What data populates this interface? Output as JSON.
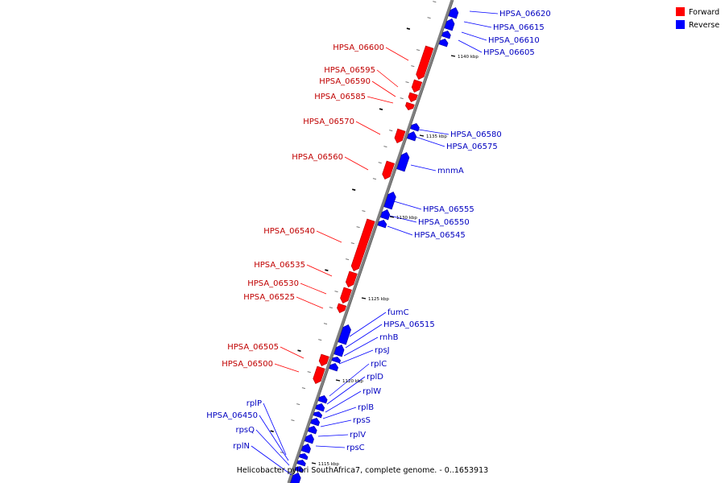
{
  "legend": [
    {
      "label": "Forward",
      "color": "#ff0000"
    },
    {
      "label": "Reverse",
      "color": "#0000ff"
    }
  ],
  "caption": "Helicobacter pylori SouthAfrica7, complete genome. - 0..1653913",
  "colors": {
    "forward": "#ff0000",
    "reverse": "#0000ff",
    "backbone": "#808080",
    "leader": "#000000"
  },
  "ticks": [
    "1140 kbp",
    "1135 kbp",
    "1130 kbp",
    "1125 kbp",
    "1120 kbp",
    "1115 kbp"
  ],
  "genes": [
    {
      "name": "HPSA_06620",
      "strand": "reverse"
    },
    {
      "name": "HPSA_06615",
      "strand": "reverse"
    },
    {
      "name": "HPSA_06610",
      "strand": "reverse"
    },
    {
      "name": "HPSA_06605",
      "strand": "reverse"
    },
    {
      "name": "HPSA_06600",
      "strand": "forward"
    },
    {
      "name": "HPSA_06595",
      "strand": "forward"
    },
    {
      "name": "HPSA_06590",
      "strand": "forward"
    },
    {
      "name": "HPSA_06585",
      "strand": "forward"
    },
    {
      "name": "HPSA_06570",
      "strand": "forward"
    },
    {
      "name": "HPSA_06580",
      "strand": "reverse"
    },
    {
      "name": "HPSA_06575",
      "strand": "reverse"
    },
    {
      "name": "HPSA_06560",
      "strand": "forward"
    },
    {
      "name": "mnmA",
      "strand": "reverse"
    },
    {
      "name": "HPSA_06555",
      "strand": "reverse"
    },
    {
      "name": "HPSA_06550",
      "strand": "reverse"
    },
    {
      "name": "HPSA_06545",
      "strand": "reverse"
    },
    {
      "name": "HPSA_06540",
      "strand": "forward"
    },
    {
      "name": "HPSA_06535",
      "strand": "forward"
    },
    {
      "name": "HPSA_06530",
      "strand": "forward"
    },
    {
      "name": "HPSA_06525",
      "strand": "forward"
    },
    {
      "name": "fumC",
      "strand": "reverse"
    },
    {
      "name": "HPSA_06515",
      "strand": "reverse"
    },
    {
      "name": "rnhB",
      "strand": "reverse"
    },
    {
      "name": "HPSA_06505",
      "strand": "forward"
    },
    {
      "name": "rpsJ",
      "strand": "reverse"
    },
    {
      "name": "HPSA_06500",
      "strand": "forward"
    },
    {
      "name": "rplC",
      "strand": "reverse"
    },
    {
      "name": "rplD",
      "strand": "reverse"
    },
    {
      "name": "rplW",
      "strand": "reverse"
    },
    {
      "name": "rplB",
      "strand": "reverse"
    },
    {
      "name": "rpsS",
      "strand": "reverse"
    },
    {
      "name": "rplV",
      "strand": "reverse"
    },
    {
      "name": "rpsC",
      "strand": "reverse"
    },
    {
      "name": "rplP",
      "strand": "reverse"
    },
    {
      "name": "HPSA_06450",
      "strand": "reverse"
    },
    {
      "name": "rpsQ",
      "strand": "reverse"
    },
    {
      "name": "rplN",
      "strand": "reverse"
    }
  ]
}
